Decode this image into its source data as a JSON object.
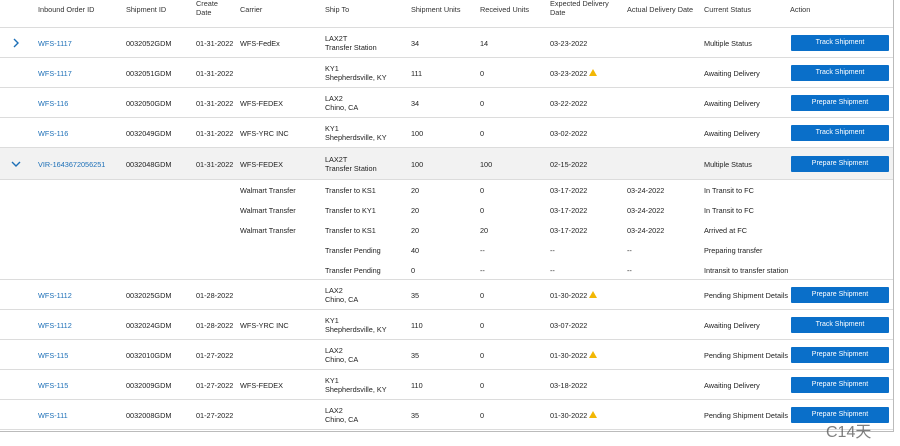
{
  "table": {
    "columns": [
      "Inbound Order ID",
      "Shipment ID",
      "Create Date",
      "Carrier",
      "Ship To",
      "Shipment Units",
      "Received Units",
      "Expected Delivery Date",
      "Actual Delivery Date",
      "Current Status",
      "Action"
    ],
    "rows": [
      {
        "expander": "collapsed",
        "id": "WFS-1117",
        "shipment_id": "0032052GDM",
        "create_date": "01-31-2022",
        "carrier": "WFS-FedEx",
        "ship_to": [
          "LAX2T",
          "Transfer Station"
        ],
        "units": "34",
        "received": "14",
        "expected": "03-23-2022",
        "status": "Multiple Status",
        "action": "Track Shipment"
      },
      {
        "id": "WFS-1117",
        "shipment_id": "0032051GDM",
        "create_date": "01-31-2022",
        "ship_to": [
          "KY1",
          "Shepherdsville, KY"
        ],
        "units": "111",
        "received": "0",
        "expected": "03-23-2022",
        "warning": true,
        "status": "Awaiting Delivery",
        "action": "Track Shipment"
      },
      {
        "id": "WFS-116",
        "shipment_id": "0032050GDM",
        "create_date": "01-31-2022",
        "carrier": "WFS-FEDEX",
        "ship_to": [
          "LAX2",
          "Chino, CA"
        ],
        "units": "34",
        "received": "0",
        "expected": "03-22-2022",
        "status": "Awaiting Delivery",
        "action": "Prepare Shipment"
      },
      {
        "id": "WFS-116",
        "shipment_id": "0032049GDM",
        "create_date": "01-31-2022",
        "carrier": "WFS-YRC INC",
        "ship_to": [
          "KY1",
          "Shepherdsville, KY"
        ],
        "units": "100",
        "received": "0",
        "expected": "03-02-2022",
        "status": "Awaiting Delivery",
        "action": "Track Shipment"
      },
      {
        "expander": "expanded",
        "id": "VIR-1643672056251",
        "shipment_id": "0032048GDM",
        "create_date": "01-31-2022",
        "carrier": "WFS-FEDEX",
        "ship_to": [
          "LAX2T",
          "Transfer Station"
        ],
        "units": "100",
        "received": "100",
        "expected": "02-15-2022",
        "status": "Multiple Status",
        "action": "Prepare Shipment",
        "children": [
          {
            "carrier": "Walmart Transfer",
            "ship_to": "Transfer to KS1",
            "units": "20",
            "received": "0",
            "expected": "03-17-2022",
            "actual": "03-24-2022",
            "status": "In Transit to FC"
          },
          {
            "carrier": "Walmart Transfer",
            "ship_to": "Transfer to KY1",
            "units": "20",
            "received": "0",
            "expected": "03-17-2022",
            "actual": "03-24-2022",
            "status": "In Transit to FC"
          },
          {
            "carrier": "Walmart Transfer",
            "ship_to": "Transfer to KS1",
            "units": "20",
            "received": "20",
            "expected": "03-17-2022",
            "actual": "03-24-2022",
            "status": "Arrived at FC"
          },
          {
            "ship_to": "Transfer Pending",
            "units": "40",
            "received": "--",
            "expected": "--",
            "actual": "--",
            "status": "Preparing transfer"
          },
          {
            "ship_to": "Transfer Pending",
            "units": "0",
            "received": "--",
            "expected": "--",
            "actual": "--",
            "status": "Intransit to transfer station"
          }
        ]
      },
      {
        "id": "WFS-1112",
        "shipment_id": "0032025GDM",
        "create_date": "01-28-2022",
        "ship_to": [
          "LAX2",
          "Chino, CA"
        ],
        "units": "35",
        "received": "0",
        "expected": "01-30-2022",
        "warning": true,
        "status": "Pending Shipment Details",
        "action": "Prepare Shipment"
      },
      {
        "id": "WFS-1112",
        "shipment_id": "0032024GDM",
        "create_date": "01-28-2022",
        "carrier": "WFS-YRC INC",
        "ship_to": [
          "KY1",
          "Shepherdsville, KY"
        ],
        "units": "110",
        "received": "0",
        "expected": "03-07-2022",
        "status": "Awaiting Delivery",
        "action": "Track Shipment"
      },
      {
        "id": "WFS-115",
        "shipment_id": "0032010GDM",
        "create_date": "01-27-2022",
        "ship_to": [
          "LAX2",
          "Chino, CA"
        ],
        "units": "35",
        "received": "0",
        "expected": "01-30-2022",
        "warning": true,
        "status": "Pending Shipment Details",
        "action": "Prepare Shipment"
      },
      {
        "id": "WFS-115",
        "shipment_id": "0032009GDM",
        "create_date": "01-27-2022",
        "carrier": "WFS-FEDEX",
        "ship_to": [
          "KY1",
          "Shepherdsville, KY"
        ],
        "units": "110",
        "received": "0",
        "expected": "03-18-2022",
        "status": "Awaiting Delivery",
        "action": "Prepare Shipment"
      },
      {
        "id": "WFS-111",
        "shipment_id": "0032008GDM",
        "create_date": "01-27-2022",
        "ship_to": [
          "LAX2",
          "Chino, CA"
        ],
        "units": "35",
        "received": "0",
        "expected": "01-30-2022",
        "warning": true,
        "status": "Pending Shipment Details",
        "action": "Prepare Shipment"
      }
    ]
  },
  "watermark": "C14天"
}
